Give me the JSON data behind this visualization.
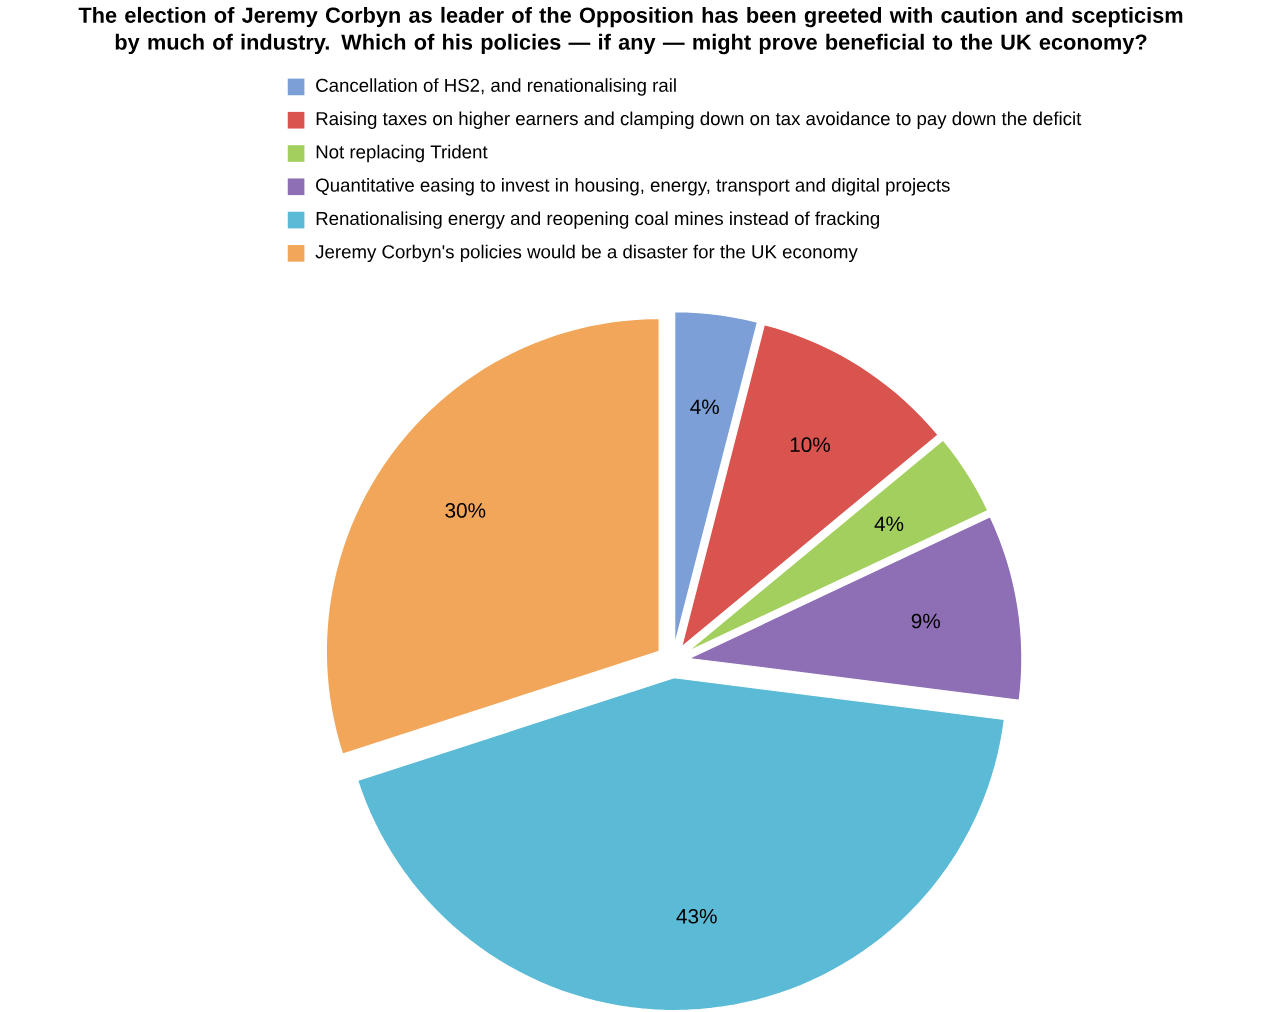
{
  "chart_data": {
    "type": "pie",
    "title": "The election of Jeremy Corbyn as leader of the Opposition has been greeted with caution and scepticism by much of industry. Which of his policies — if any — might prove beneficial to the UK economy?",
    "categories": [
      "Cancellation of HS2, and renationalising rail",
      "Raising taxes on higher earners and clamping down on tax avoidance to pay down the deficit",
      "Not replacing Trident",
      "Quantitative easing to invest in housing, energy, transport and digital projects",
      "Renationalising energy and reopening coal mines instead of fracking",
      "Jeremy Corbyn's policies would be a disaster for the UK economy"
    ],
    "values": [
      4,
      10,
      4,
      9,
      43,
      30
    ],
    "value_labels": [
      "4%",
      "10%",
      "4%",
      "9%",
      "43%",
      "30%"
    ],
    "colors": [
      "#7b9fd6",
      "#d9534f",
      "#a3cf5f",
      "#8e6fb6",
      "#5bbad5",
      "#f2a65a"
    ],
    "legend": "top"
  }
}
